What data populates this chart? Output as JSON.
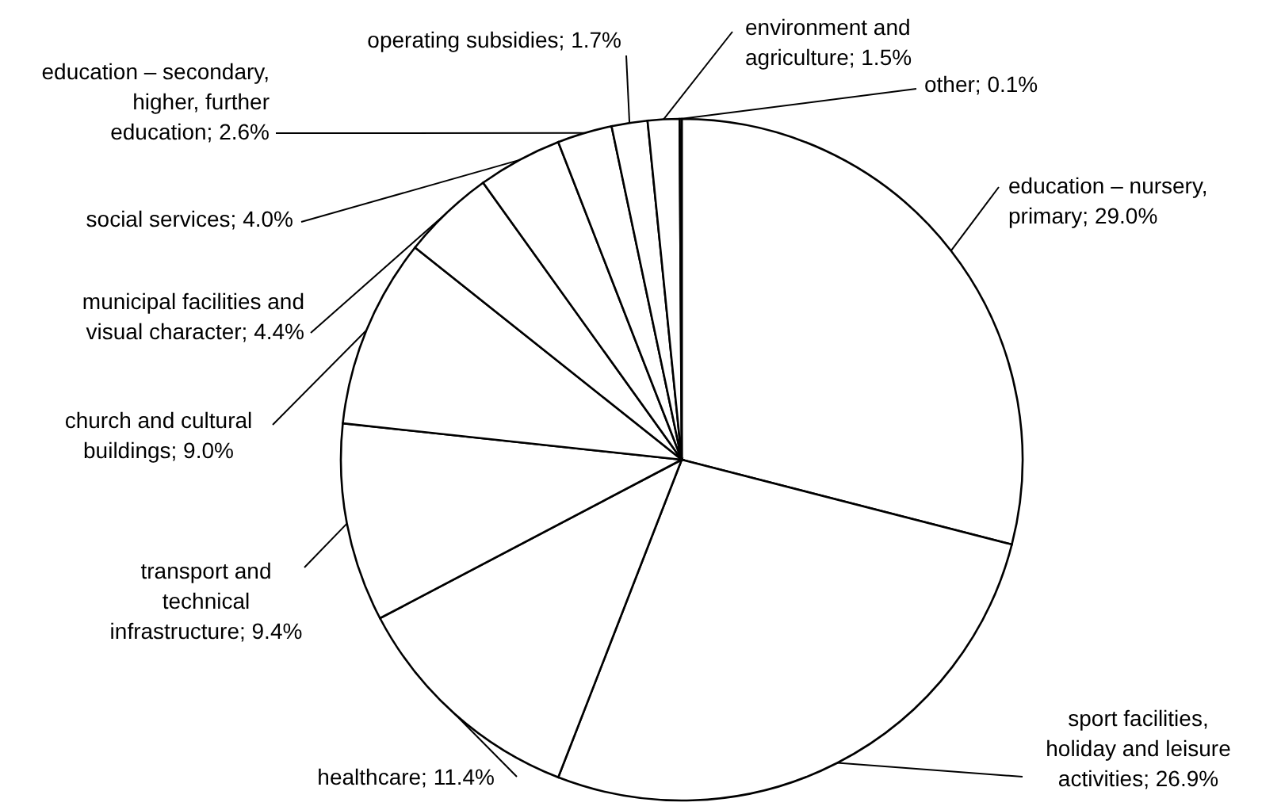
{
  "chart_data": {
    "type": "pie",
    "categories": [
      "education – nursery, primary",
      "sport facilities, holiday and leisure activities",
      "healthcare",
      "transport and technical infrastructure",
      "church and cultural buildings",
      "municipal facilities and visual character",
      "social services",
      "education – secondary, higher, further education",
      "operating subsidies",
      "environment and agriculture",
      "other"
    ],
    "values": [
      29.0,
      26.9,
      11.4,
      9.4,
      9.0,
      4.4,
      4.0,
      2.6,
      1.7,
      1.5,
      0.1
    ],
    "value_labels": [
      "29.0%",
      "26.9%",
      "11.4%",
      "9.4%",
      "9.0%",
      "4.4%",
      "4.0%",
      "2.6%",
      "1.7%",
      "1.5%",
      "0.1%"
    ],
    "colors": [
      "#ffffff",
      "#ffffff",
      "#ffffff",
      "#ffffff",
      "#ffffff",
      "#ffffff",
      "#ffffff",
      "#ffffff",
      "#ffffff",
      "#ffffff",
      "#ffffff"
    ],
    "legend": false
  }
}
